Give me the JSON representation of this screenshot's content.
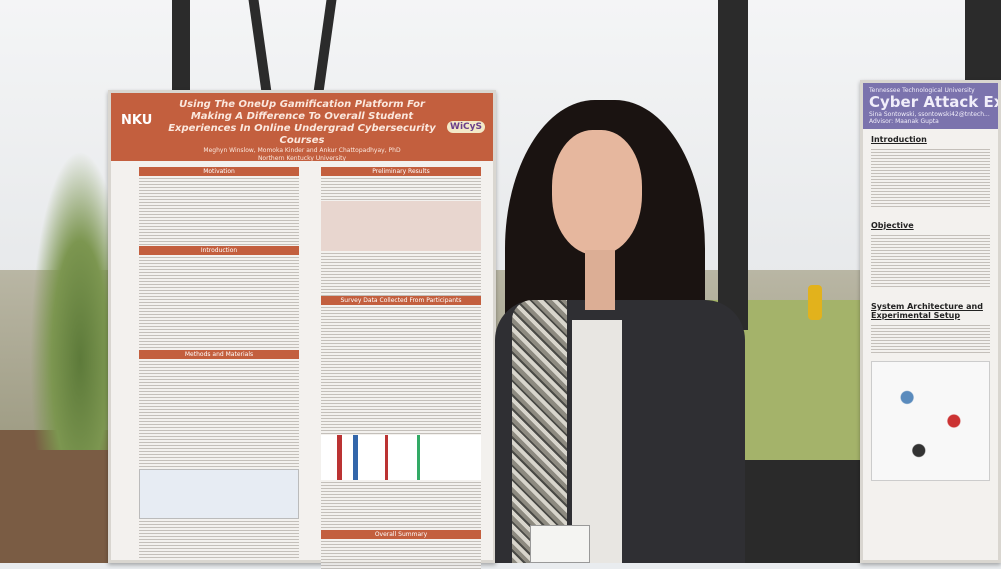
{
  "left_poster": {
    "logo_left": "NKU",
    "logo_right": "WiCyS",
    "title": "Using The OneUp Gamification Platform For Making A Difference To Overall Student Experiences In Online Undergrad Cybersecurity Courses",
    "authors": "Meghyn Winslow, Momoka Kinder and Ankur Chattopadhyay, PhD",
    "affiliation": "Northern Kentucky University",
    "sections": [
      "Motivation",
      "Introduction",
      "Methods and Materials",
      "Preliminary Results",
      "Survey Data Collected From Participants",
      "Overall Summary"
    ]
  },
  "right_poster": {
    "institution": "Tennessee Technological University",
    "title": "Cyber Attack Ex... Smart Farm Arc...",
    "author": "Sina Sontowski, ssontowski42@tntech...",
    "advisor": "Advisor: Maanak Gupta",
    "sections": [
      "Introduction",
      "Objective",
      "System Architecture and Experimental Setup"
    ]
  },
  "colors": {
    "left_accent": "#c35f3e",
    "right_accent": "#7b73ad"
  }
}
